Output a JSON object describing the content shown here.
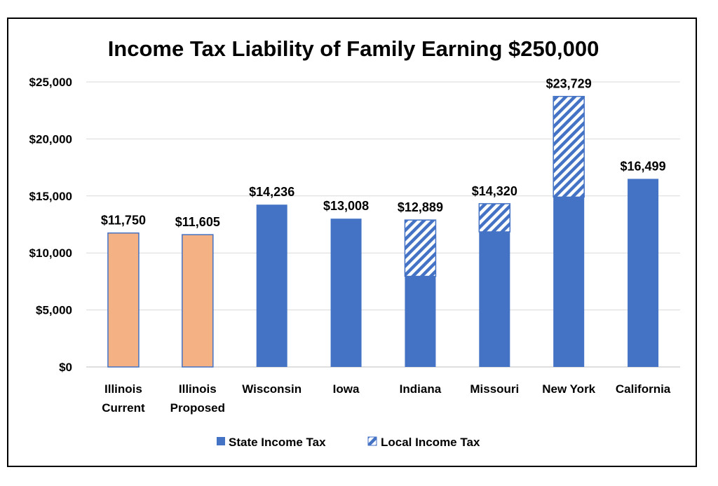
{
  "chart_data": {
    "type": "bar",
    "stacked": true,
    "title": "Income Tax Liability of Family Earning $250,000",
    "xlabel": "",
    "ylabel": "",
    "ylim": [
      0,
      25000
    ],
    "yticks": [
      "$0",
      "$5,000",
      "$10,000",
      "$15,000",
      "$20,000",
      "$25,000"
    ],
    "grid": true,
    "legend_position": "bottom",
    "categories": [
      [
        "Illinois",
        "Current"
      ],
      [
        "Illinois",
        "Proposed"
      ],
      [
        "Wisconsin"
      ],
      [
        "Iowa"
      ],
      [
        "Indiana"
      ],
      [
        "Missouri"
      ],
      [
        "New York"
      ],
      [
        "California"
      ]
    ],
    "series": [
      {
        "name": "State Income Tax",
        "color": "#4472c4",
        "pattern": "solid",
        "values": [
          11750,
          11605,
          14236,
          13008,
          7950,
          11850,
          14900,
          16499
        ]
      },
      {
        "name": "Local Income Tax",
        "color": "#4472c4",
        "pattern": "hatched",
        "values": [
          0,
          0,
          0,
          0,
          4939,
          2470,
          8829,
          0
        ]
      }
    ],
    "highlight_color": "#f4b183",
    "highlighted_categories": [
      0,
      1
    ],
    "totals": [
      "$11,750",
      "$11,605",
      "$14,236",
      "$13,008",
      "$12,889",
      "$14,320",
      "$23,729",
      "$16,499"
    ]
  }
}
